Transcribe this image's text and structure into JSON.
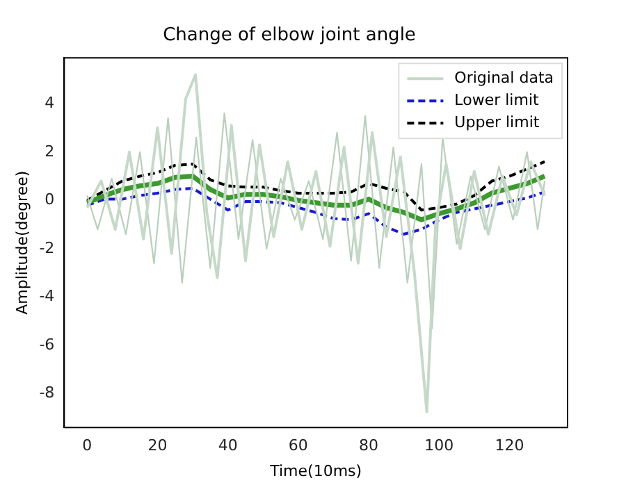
{
  "chart_data": {
    "type": "line",
    "title": "Change of elbow joint angle",
    "xlabel": "Time(10ms)",
    "ylabel": "Amplitude(degree)",
    "xlim": [
      -6.5,
      136.5
    ],
    "xticks": [
      0,
      20,
      40,
      60,
      80,
      100,
      120
    ],
    "ylim": [
      -9.4,
      5.9
    ],
    "yticks": [
      -8,
      -6,
      -4,
      -2,
      0,
      2,
      4
    ],
    "grid": false,
    "legend": "top right",
    "marker": "none",
    "series": [
      {
        "name": "Original data",
        "color": "#c6d9c9",
        "line_style": "solid",
        "x": [
          0,
          4,
          8,
          12,
          16,
          20,
          24,
          28,
          30.8,
          34,
          37,
          41,
          45,
          49,
          53,
          57,
          61,
          65,
          69,
          73,
          77,
          81,
          85,
          89,
          93,
          96.5,
          99,
          102,
          106,
          110,
          114,
          118,
          122,
          126,
          130
        ],
        "values": [
          -0.3,
          0.8,
          -1.2,
          2.0,
          -1.6,
          3.0,
          -2.2,
          4.2,
          5.2,
          -0.5,
          -3.2,
          3.1,
          -2.5,
          2.3,
          -1.5,
          1.6,
          -1.2,
          1.2,
          -1.9,
          2.2,
          -2.6,
          2.8,
          -1.5,
          1.8,
          -3.0,
          -8.75,
          -1.0,
          1.5,
          -2.0,
          1.2,
          -1.4,
          1.0,
          -0.6,
          1.6,
          0.2
        ]
      },
      {
        "color": "#b9cfbc",
        "line_style": "solid",
        "x": [
          0,
          3,
          7,
          11,
          15,
          19,
          23,
          27,
          31,
          35,
          39,
          43,
          47,
          51,
          55,
          59,
          63,
          67,
          71,
          75,
          79,
          83,
          87,
          91,
          95,
          98,
          101,
          105,
          109,
          113,
          117,
          121,
          125,
          128,
          130
        ],
        "values": [
          0.2,
          -1.2,
          0.9,
          -1.4,
          2.0,
          -2.6,
          3.4,
          -3.4,
          2.6,
          -2.8,
          3.6,
          -1.6,
          2.5,
          -2.0,
          0.9,
          -0.8,
          0.8,
          -1.6,
          2.8,
          -2.5,
          3.5,
          -2.8,
          2.2,
          -3.4,
          1.5,
          -5.3,
          2.6,
          -1.8,
          1.0,
          -1.2,
          1.4,
          -0.8,
          2.0,
          -1.2,
          0.8
        ]
      },
      {
        "color": "#3c9a2e",
        "line_style": "solid",
        "x": [
          0,
          5,
          10,
          15,
          20,
          25,
          30,
          35,
          40,
          45,
          50,
          55,
          60,
          65,
          70,
          75,
          80,
          85,
          90,
          95,
          100,
          105,
          110,
          115,
          120,
          125,
          130
        ],
        "values": [
          -0.1,
          0.2,
          0.45,
          0.6,
          0.7,
          0.95,
          1.0,
          0.45,
          0.1,
          0.25,
          0.25,
          0.15,
          0,
          -0.1,
          -0.2,
          -0.2,
          0.05,
          -0.3,
          -0.5,
          -0.8,
          -0.55,
          -0.35,
          -0.1,
          0.3,
          0.5,
          0.7,
          1.0
        ]
      },
      {
        "name": "Lower limit",
        "color": "#1a1ad0",
        "line_style": "dashed",
        "x": [
          0,
          5,
          10,
          15,
          20,
          25,
          30,
          35,
          40,
          45,
          50,
          55,
          60,
          65,
          70,
          75,
          80,
          85,
          90,
          95,
          100,
          105,
          110,
          115,
          120,
          125,
          130
        ],
        "values": [
          -0.2,
          0.05,
          0.05,
          0.2,
          0.3,
          0.45,
          0.5,
          0.05,
          -0.4,
          -0.05,
          -0.05,
          -0.1,
          -0.3,
          -0.5,
          -0.75,
          -0.8,
          -0.55,
          -1.1,
          -1.4,
          -1.2,
          -0.8,
          -0.5,
          -0.35,
          -0.2,
          -0.05,
          0.1,
          0.35
        ]
      },
      {
        "name": "Upper limit",
        "color": "#000000",
        "line_style": "dashed",
        "x": [
          0,
          5,
          10,
          15,
          20,
          25,
          30,
          35,
          40,
          45,
          50,
          55,
          60,
          65,
          70,
          75,
          80,
          85,
          90,
          95,
          100,
          105,
          110,
          115,
          120,
          125,
          130
        ],
        "values": [
          0.0,
          0.4,
          0.8,
          1.0,
          1.15,
          1.45,
          1.5,
          0.85,
          0.6,
          0.55,
          0.55,
          0.4,
          0.3,
          0.3,
          0.3,
          0.35,
          0.7,
          0.5,
          0.35,
          -0.4,
          -0.3,
          -0.15,
          0.2,
          0.8,
          1.0,
          1.3,
          1.6
        ]
      }
    ]
  }
}
